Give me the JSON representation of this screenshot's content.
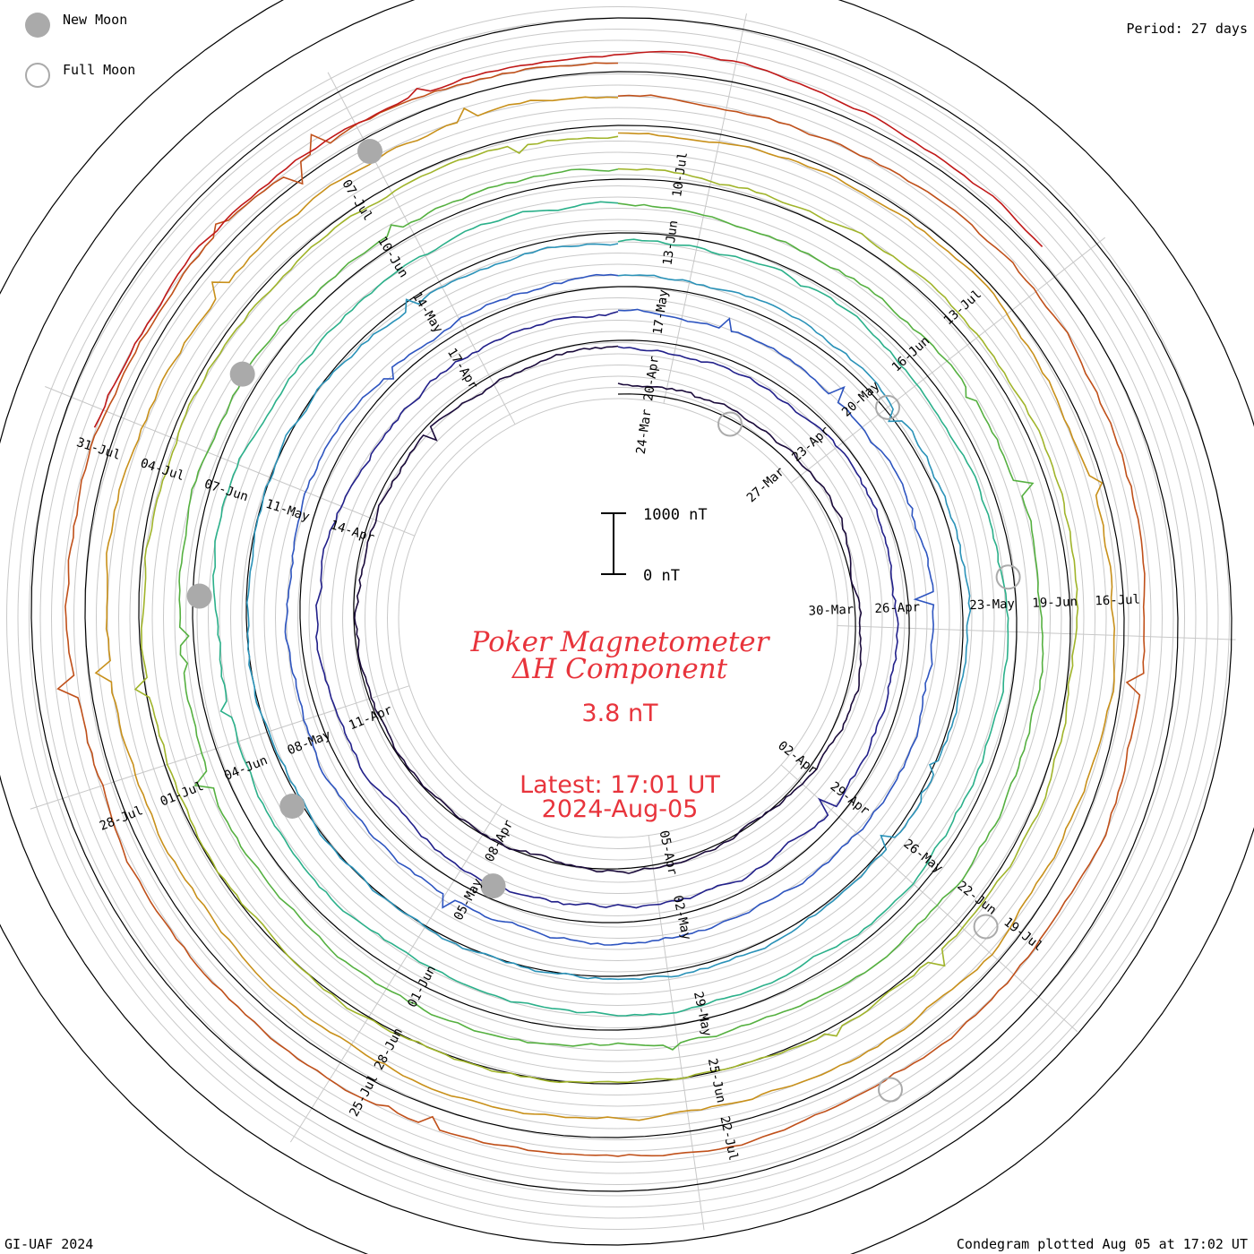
{
  "legend": {
    "new_moon_label": "New Moon",
    "full_moon_label": "Full Moon",
    "new_moon_color": "#aaaaaa",
    "full_moon_color": "#aaaaaa"
  },
  "header": {
    "period": "Period: 27 days"
  },
  "footer": {
    "credit": "GI-UAF 2024",
    "plotted": "Condegram plotted Aug 05 at 17:02 UT"
  },
  "center": {
    "title_line1": "Poker Magnetometer",
    "title_line2": "ΔH Component",
    "value": "3.8 nT",
    "latest": "Latest: 17:01 UT",
    "date": "2024-Aug-05",
    "color": "#e8343c"
  },
  "chart_data": {
    "type": "line",
    "layout": "spiral condegram",
    "period_days": 27,
    "scale_bar": {
      "top_label": "1000 nT",
      "bottom_label": "0 nT",
      "nT": 1000
    },
    "series": [
      {
        "color": "#1a0a3a",
        "start": "2024-03-23",
        "end": "2024-04-19"
      },
      {
        "color": "#22208a",
        "start": "2024-04-12",
        "end": "2024-05-10"
      },
      {
        "color": "#2e55c0",
        "start": "2024-04-19",
        "end": "2024-05-16"
      },
      {
        "color": "#2a92b8",
        "start": "2024-05-10",
        "end": "2024-06-06"
      },
      {
        "color": "#2bb08a",
        "start": "2024-05-16",
        "end": "2024-06-12"
      },
      {
        "color": "#55b040",
        "start": "2024-06-06",
        "end": "2024-07-03"
      },
      {
        "color": "#a0b42a",
        "start": "2024-06-12",
        "end": "2024-07-09"
      },
      {
        "color": "#c8901a",
        "start": "2024-07-03",
        "end": "2024-07-30"
      },
      {
        "color": "#c0501a",
        "start": "2024-07-09",
        "end": "2024-08-05"
      },
      {
        "color": "#c01818",
        "start": "2024-07-30",
        "end": "2024-08-05"
      }
    ],
    "date_labels": [
      {
        "text": "24-Mar",
        "angle": 8,
        "r": 210
      },
      {
        "text": "27-Mar",
        "angle": 48,
        "r": 222
      },
      {
        "text": "30-Mar",
        "angle": 88,
        "r": 238
      },
      {
        "text": "02-Apr",
        "angle": 128,
        "r": 254
      },
      {
        "text": "05-Apr",
        "angle": 168,
        "r": 268
      },
      {
        "text": "08-Apr",
        "angle": 208,
        "r": 282
      },
      {
        "text": "11-Apr",
        "angle": 248,
        "r": 298
      },
      {
        "text": "14-Apr",
        "angle": 288,
        "r": 312
      },
      {
        "text": "17-Apr",
        "angle": 328,
        "r": 328
      },
      {
        "text": "20-Apr",
        "angle": 8,
        "r": 270
      },
      {
        "text": "23-Apr",
        "angle": 48,
        "r": 290
      },
      {
        "text": "26-Apr",
        "angle": 88,
        "r": 312
      },
      {
        "text": "29-Apr",
        "angle": 128,
        "r": 328
      },
      {
        "text": "02-May",
        "angle": 168,
        "r": 342
      },
      {
        "text": "05-May",
        "angle": 208,
        "r": 356
      },
      {
        "text": "08-May",
        "angle": 248,
        "r": 372
      },
      {
        "text": "11-May",
        "angle": 288,
        "r": 388
      },
      {
        "text": "14-May",
        "angle": 328,
        "r": 402
      },
      {
        "text": "17-May",
        "angle": 8,
        "r": 345
      },
      {
        "text": "20-May",
        "angle": 48,
        "r": 365
      },
      {
        "text": "23-May",
        "angle": 88,
        "r": 418
      },
      {
        "text": "26-May",
        "angle": 128,
        "r": 432
      },
      {
        "text": "29-May",
        "angle": 168,
        "r": 452
      },
      {
        "text": "01-Jun",
        "angle": 208,
        "r": 466
      },
      {
        "text": "04-Jun",
        "angle": 248,
        "r": 448
      },
      {
        "text": "07-Jun",
        "angle": 288,
        "r": 460
      },
      {
        "text": "10-Jun",
        "angle": 328,
        "r": 475
      },
      {
        "text": "13-Jun",
        "angle": 8,
        "r": 423
      },
      {
        "text": "16-Jun",
        "angle": 48,
        "r": 440
      },
      {
        "text": "19-Jun",
        "angle": 88,
        "r": 488
      },
      {
        "text": "22-Jun",
        "angle": 128,
        "r": 508
      },
      {
        "text": "25-Jun",
        "angle": 168,
        "r": 528
      },
      {
        "text": "28-Jun",
        "angle": 208,
        "r": 545
      },
      {
        "text": "01-Jul",
        "angle": 248,
        "r": 525
      },
      {
        "text": "04-Jul",
        "angle": 288,
        "r": 535
      },
      {
        "text": "07-Jul",
        "angle": 328,
        "r": 550
      },
      {
        "text": "10-Jul",
        "angle": 8,
        "r": 500
      },
      {
        "text": "13-Jul",
        "angle": 48,
        "r": 518
      },
      {
        "text": "16-Jul",
        "angle": 88,
        "r": 558
      },
      {
        "text": "19-Jul",
        "angle": 128,
        "r": 574
      },
      {
        "text": "22-Jul",
        "angle": 168,
        "r": 594
      },
      {
        "text": "25-Jul",
        "angle": 208,
        "r": 604
      },
      {
        "text": "28-Jul",
        "angle": 248,
        "r": 598
      },
      {
        "text": "31-Jul",
        "angle": 288,
        "r": 610
      }
    ],
    "new_moons": [
      {
        "angle": 205,
        "r": 330
      },
      {
        "angle": 240,
        "r": 420
      },
      {
        "angle": 273,
        "r": 468
      },
      {
        "angle": 303,
        "r": 500
      },
      {
        "angle": 332,
        "r": 590
      }
    ],
    "full_moons": [
      {
        "angle": 30,
        "r": 250
      },
      {
        "angle": 52,
        "r": 382
      },
      {
        "angle": 84,
        "r": 438
      },
      {
        "angle": 130,
        "r": 536
      },
      {
        "angle": 150,
        "r": 608
      }
    ]
  }
}
